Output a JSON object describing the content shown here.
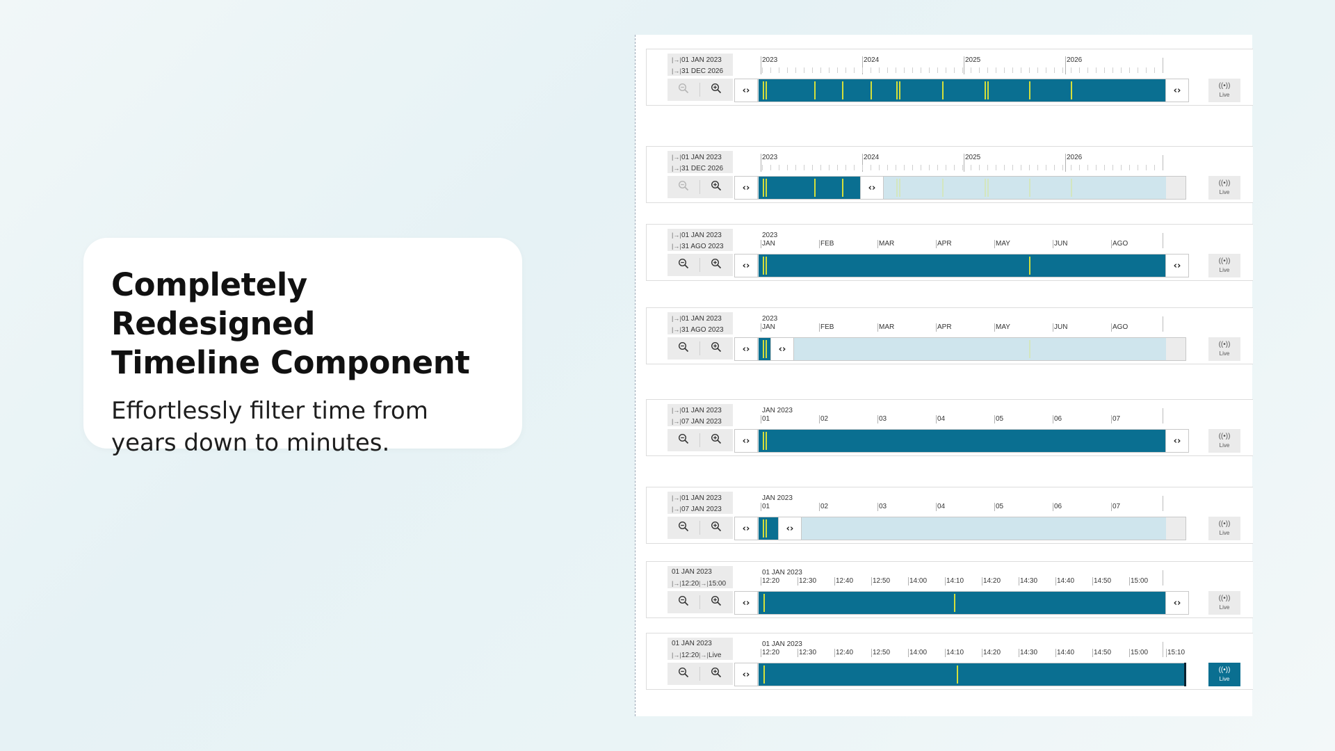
{
  "hero": {
    "title_line1": "Completely Redesigned",
    "title_line2": "Timeline Component",
    "subtitle": "Effortlessly filter time from years down to minutes."
  },
  "colors": {
    "accent": "#0a6f91",
    "event_marker": "#d5df3a",
    "selection_ghost": "#cfe5ed"
  },
  "icons": {
    "range_start": "range-start-icon",
    "range_end": "range-end-icon",
    "zoom_out": "zoom-out-icon",
    "zoom_in": "zoom-in-icon",
    "live": "live-broadcast-icon",
    "handle": "drag-handle-icon"
  },
  "live_label": "Live",
  "handle_glyph": "‹›",
  "timelines": [
    {
      "start": "01 JAN 2023",
      "end": "31 DEC 2026",
      "header": "",
      "ticks": [
        "2023",
        "2024",
        "2025",
        "2026"
      ],
      "selection_end": 1.0,
      "live_on": false,
      "zoom_out_enabled": false,
      "markers": [
        0.01,
        0.017,
        0.136,
        0.205,
        0.274,
        0.338,
        0.345,
        0.45,
        0.555,
        0.562,
        0.663,
        0.767
      ]
    },
    {
      "start": "01 JAN 2023",
      "end": "31 DEC 2026",
      "header": "",
      "ticks": [
        "2023",
        "2024",
        "2025",
        "2026"
      ],
      "selection_end": 0.25,
      "live_on": false,
      "zoom_out_enabled": false,
      "markers": [
        0.01,
        0.017,
        0.136,
        0.205,
        0.274,
        0.338,
        0.345,
        0.45,
        0.555,
        0.562,
        0.663,
        0.767
      ]
    },
    {
      "start": "01 JAN 2023",
      "end": "31 AGO 2023",
      "header": "2023",
      "ticks": [
        "JAN",
        "FEB",
        "MAR",
        "APR",
        "MAY",
        "JUN",
        "AGO"
      ],
      "selection_end": 1.0,
      "live_on": false,
      "zoom_out_enabled": true,
      "markers": [
        0.01,
        0.017,
        0.664
      ]
    },
    {
      "start": "01 JAN 2023",
      "end": "31 AGO 2023",
      "header": "2023",
      "ticks": [
        "JAN",
        "FEB",
        "MAR",
        "APR",
        "MAY",
        "JUN",
        "AGO"
      ],
      "selection_end": 0.03,
      "live_on": false,
      "zoom_out_enabled": true,
      "markers": [
        0.01,
        0.017,
        0.664
      ]
    },
    {
      "start": "01 JAN 2023",
      "end": "07 JAN 2023",
      "header": "JAN 2023",
      "ticks": [
        "01",
        "02",
        "03",
        "04",
        "05",
        "06",
        "07"
      ],
      "selection_end": 1.0,
      "live_on": false,
      "zoom_out_enabled": true,
      "markers": [
        0.01,
        0.017
      ]
    },
    {
      "start": "01 JAN 2023",
      "end": "07 JAN 2023",
      "header": "JAN 2023",
      "ticks": [
        "01",
        "02",
        "03",
        "04",
        "05",
        "06",
        "07"
      ],
      "selection_end": 0.05,
      "live_on": false,
      "zoom_out_enabled": true,
      "markers": [
        0.01,
        0.017
      ]
    },
    {
      "date": "01 JAN 2023",
      "start_time": "12:20",
      "end_time": "15:00",
      "header": "01 JAN 2023",
      "ticks": [
        "12:20",
        "12:30",
        "12:40",
        "12:50",
        "14:00",
        "14:10",
        "14:20",
        "14:30",
        "14:40",
        "14:50",
        "15:00"
      ],
      "selection_end": 1.0,
      "live_on": false,
      "zoom_out_enabled": true,
      "markers": [
        0.012,
        0.48
      ]
    },
    {
      "date": "01 JAN 2023",
      "start_time": "12:20",
      "end_time": "Live",
      "header": "01 JAN 2023",
      "ticks": [
        "12:20",
        "12:30",
        "12:40",
        "12:50",
        "14:00",
        "14:10",
        "14:20",
        "14:30",
        "14:40",
        "14:50",
        "15:00",
        "15:10"
      ],
      "selection_end": 1.0,
      "live_on": true,
      "zoom_out_enabled": true,
      "markers": [
        0.012,
        0.486
      ]
    }
  ]
}
